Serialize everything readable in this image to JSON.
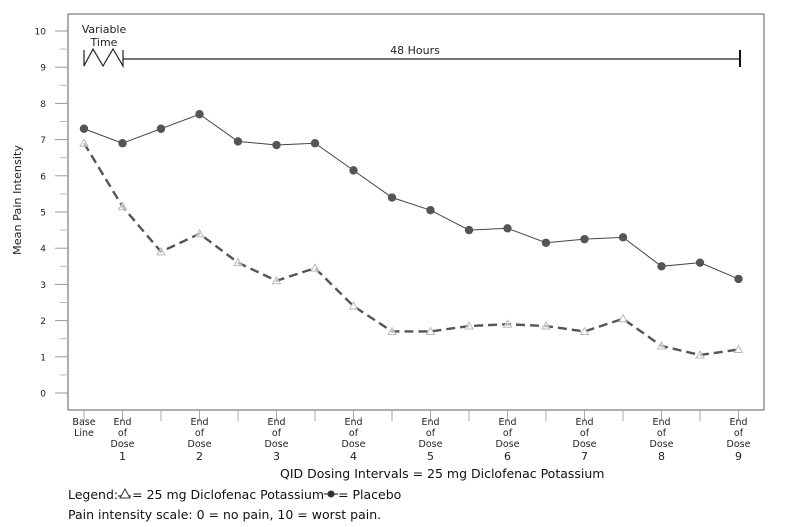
{
  "chart_data": {
    "type": "line",
    "ylabel": "Mean Pain Intensity",
    "xlabel": "QID Dosing Intervals = 25 mg Diclofenac Potassium",
    "ylim": [
      0,
      10
    ],
    "yticks": [
      "0",
      "1",
      "2",
      "3",
      "4",
      "5",
      "6",
      "7",
      "8",
      "9",
      "10"
    ],
    "x_tick_labels": [
      {
        "index": 0,
        "lines": [
          "Base",
          "Line"
        ]
      },
      {
        "index": 1,
        "lines": [
          "End",
          "of",
          "Dose",
          "1"
        ]
      },
      {
        "index": 3,
        "lines": [
          "End",
          "of",
          "Dose",
          "2"
        ]
      },
      {
        "index": 5,
        "lines": [
          "End",
          "of",
          "Dose",
          "3"
        ]
      },
      {
        "index": 7,
        "lines": [
          "End",
          "of",
          "Dose",
          "4"
        ]
      },
      {
        "index": 9,
        "lines": [
          "End",
          "of",
          "Dose",
          "5"
        ]
      },
      {
        "index": 11,
        "lines": [
          "End",
          "of",
          "Dose",
          "6"
        ]
      },
      {
        "index": 13,
        "lines": [
          "End",
          "of",
          "Dose",
          "7"
        ]
      },
      {
        "index": 15,
        "lines": [
          "End",
          "of",
          "Dose",
          "8"
        ]
      },
      {
        "index": 17,
        "lines": [
          "End",
          "of",
          "Dose",
          "9"
        ]
      }
    ],
    "series": [
      {
        "name": "Placebo",
        "marker": "filled-circle",
        "line": "solid",
        "color": "#555555",
        "values": [
          7.3,
          6.9,
          7.3,
          7.7,
          6.95,
          6.85,
          6.9,
          6.15,
          5.4,
          5.05,
          4.5,
          4.55,
          4.15,
          4.25,
          4.3,
          3.5,
          3.6,
          3.15
        ]
      },
      {
        "name": "25 mg Diclofenac Potassium",
        "marker": "open-triangle",
        "line": "dashed",
        "color": "#555555",
        "values": [
          6.9,
          5.15,
          3.9,
          4.4,
          3.6,
          3.1,
          3.45,
          2.4,
          1.7,
          1.7,
          1.85,
          1.9,
          1.85,
          1.7,
          2.05,
          1.3,
          1.05,
          1.2
        ]
      }
    ],
    "annotations": {
      "variable_time": [
        "Variable",
        "Time"
      ],
      "hours": "48 Hours"
    },
    "grid": false
  },
  "footer": {
    "legend_prefix": "Legend:",
    "legend_triangle": "= 25 mg Diclofenac Potassium",
    "legend_circle": "= Placebo",
    "scale_note": "Pain intensity scale: 0 = no pain, 10 = worst pain."
  }
}
